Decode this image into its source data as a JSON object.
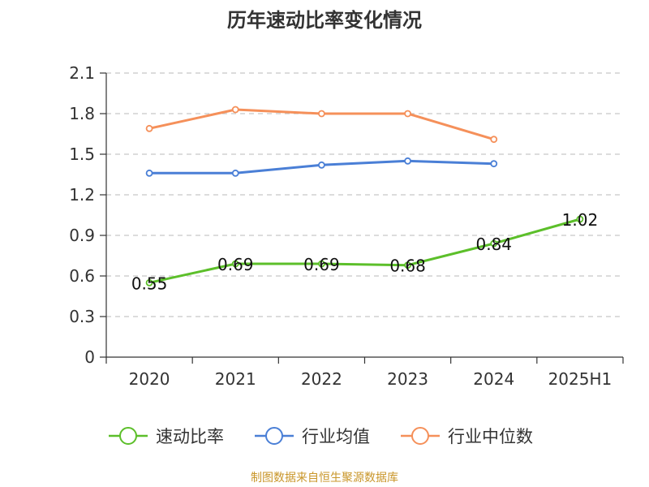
{
  "chart_data": {
    "type": "line",
    "title": "历年速动比率变化情况",
    "categories": [
      "2020",
      "2021",
      "2022",
      "2023",
      "2024",
      "2025H1"
    ],
    "y_ticks": [
      "0",
      "0.3",
      "0.6",
      "0.9",
      "1.2",
      "1.5",
      "1.8",
      "2.1"
    ],
    "ylim": [
      0,
      2.1
    ],
    "grid": true,
    "legend_position": "bottom",
    "series": [
      {
        "name": "速动比率",
        "color": "#5cbf2a",
        "values": [
          0.55,
          0.69,
          0.69,
          0.68,
          0.84,
          1.02
        ],
        "labels": [
          "0.55",
          "0.69",
          "0.69",
          "0.68",
          "0.84",
          "1.02"
        ]
      },
      {
        "name": "行业均值",
        "color": "#4a7fd6",
        "values": [
          1.36,
          1.36,
          1.42,
          1.45,
          1.43,
          null
        ]
      },
      {
        "name": "行业中位数",
        "color": "#f5905a",
        "values": [
          1.69,
          1.83,
          1.8,
          1.8,
          1.61,
          null
        ]
      }
    ]
  },
  "source": {
    "text": "制图数据来自恒生聚源数据库",
    "color": "#c9962a"
  }
}
